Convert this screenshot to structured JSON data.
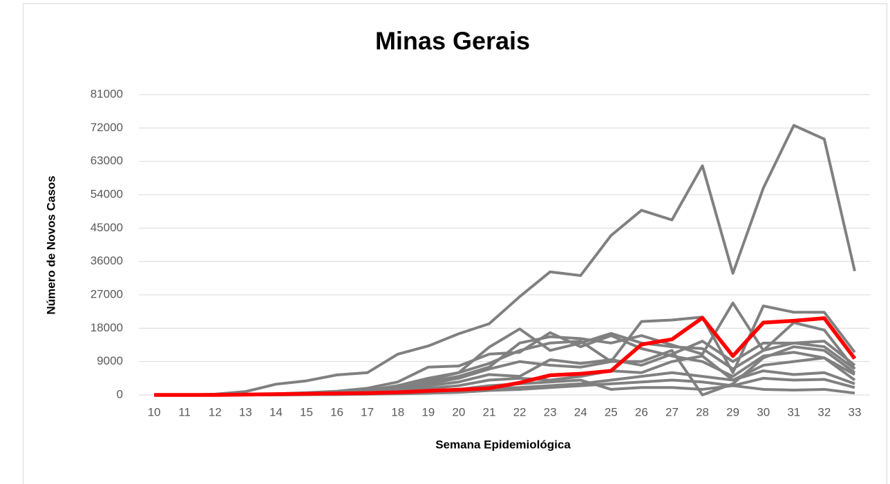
{
  "chart_data": {
    "type": "line",
    "title": "Minas Gerais",
    "x_label": "Semana Epidemiológica",
    "y_label": "Número de Novos Casos",
    "categories": [
      "10",
      "11",
      "12",
      "13",
      "14",
      "15",
      "16",
      "17",
      "18",
      "19",
      "20",
      "21",
      "22",
      "23",
      "24",
      "25",
      "26",
      "27",
      "28",
      "29",
      "30",
      "31",
      "32",
      "33"
    ],
    "ylim": [
      0,
      81000
    ],
    "yticks": [
      0,
      9000,
      18000,
      27000,
      36000,
      45000,
      54000,
      63000,
      72000,
      81000
    ],
    "grid": true,
    "series": [
      {
        "color": "#808080",
        "values": [
          0,
          0,
          200,
          900,
          2900,
          3800,
          5400,
          6000,
          11000,
          13200,
          16500,
          19200,
          26500,
          33200,
          32200,
          43000,
          49800,
          47200,
          61800,
          32800,
          55800,
          72700,
          69000,
          33400
        ]
      },
      {
        "color": "#808080",
        "values": [
          0,
          0,
          0,
          100,
          200,
          500,
          800,
          1200,
          2500,
          4000,
          6000,
          12900,
          17800,
          12000,
          14000,
          16600,
          14000,
          13000,
          12500,
          7000,
          12000,
          14000,
          14500,
          8000
        ]
      },
      {
        "color": "#808080",
        "values": [
          0,
          0,
          0,
          100,
          300,
          600,
          1000,
          1800,
          3500,
          7500,
          7800,
          11000,
          11500,
          16800,
          13000,
          16000,
          12500,
          10500,
          9000,
          5000,
          10500,
          11500,
          10000,
          5500
        ]
      },
      {
        "color": "#808080",
        "values": [
          0,
          0,
          0,
          100,
          200,
          400,
          700,
          1200,
          2500,
          4500,
          6000,
          8500,
          12000,
          14000,
          14500,
          9000,
          19800,
          20200,
          21000,
          6000,
          24000,
          22300,
          22300,
          11500
        ]
      },
      {
        "color": "#808080",
        "values": [
          0,
          0,
          0,
          50,
          200,
          400,
          600,
          900,
          2000,
          3500,
          5000,
          7500,
          14000,
          15700,
          15200,
          14000,
          16000,
          13500,
          11000,
          24800,
          12000,
          19500,
          17500,
          7000
        ]
      },
      {
        "color": "#808080",
        "values": [
          0,
          0,
          0,
          50,
          100,
          300,
          500,
          800,
          1500,
          3000,
          4500,
          7000,
          9000,
          8000,
          7500,
          9000,
          9000,
          12000,
          0,
          3000,
          10000,
          13000,
          12000,
          6000
        ]
      },
      {
        "color": "#808080",
        "values": [
          0,
          0,
          0,
          50,
          100,
          200,
          400,
          600,
          1200,
          2500,
          3500,
          5500,
          5000,
          9500,
          8500,
          9500,
          8000,
          11000,
          14500,
          9000,
          14000,
          14000,
          13000,
          7000
        ]
      },
      {
        "color": "#808080",
        "values": [
          0,
          0,
          0,
          30,
          80,
          150,
          300,
          500,
          900,
          1800,
          2500,
          4000,
          4500,
          4000,
          5000,
          6500,
          6000,
          9000,
          10500,
          4000,
          8000,
          9000,
          10000,
          4000
        ]
      },
      {
        "color": "#808080",
        "values": [
          0,
          0,
          0,
          20,
          50,
          100,
          200,
          300,
          600,
          1000,
          1500,
          2500,
          3000,
          3500,
          4000,
          1500,
          2000,
          2000,
          1500,
          2500,
          1500,
          1300,
          1500,
          500
        ]
      },
      {
        "color": "#808080",
        "values": [
          0,
          0,
          0,
          20,
          50,
          100,
          150,
          250,
          400,
          700,
          1000,
          1800,
          2000,
          2500,
          3000,
          4000,
          5000,
          6000,
          5000,
          4000,
          6500,
          5500,
          6000,
          3000
        ]
      },
      {
        "color": "#808080",
        "values": [
          0,
          0,
          0,
          10,
          30,
          80,
          120,
          200,
          300,
          500,
          700,
          1200,
          1500,
          2000,
          2500,
          3000,
          3500,
          4000,
          3500,
          2500,
          4500,
          4000,
          4200,
          2000
        ]
      },
      {
        "color": "#ff0000",
        "values": [
          0,
          0,
          0,
          100,
          200,
          300,
          400,
          500,
          700,
          1100,
          1400,
          1800,
          3300,
          5300,
          5700,
          6500,
          13600,
          15000,
          20800,
          10500,
          19500,
          20000,
          20700,
          9800
        ]
      }
    ]
  }
}
